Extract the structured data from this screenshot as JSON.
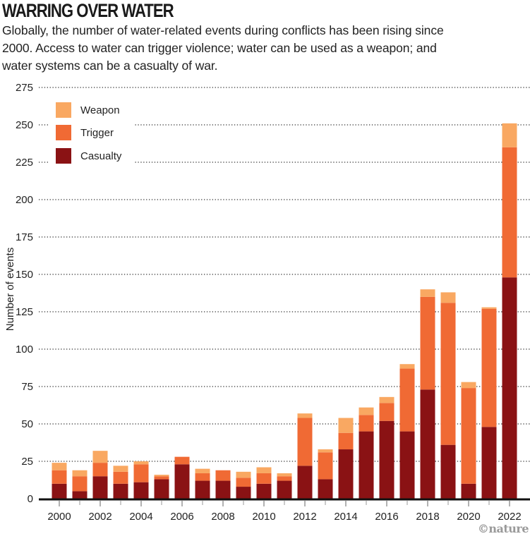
{
  "header": {
    "title": "WARRING OVER WATER",
    "subtitle": "Globally, the number of water-related events during conflicts has been rising since 2000. Access to water can trigger violence; water can be used as a weapon; and water systems can be a casualty of war."
  },
  "credit": "©nature",
  "colors": {
    "Weapon": "#F9A862",
    "Trigger": "#F06A34",
    "Casualty": "#8A1214",
    "axis": "#111111",
    "grid": "#333333"
  },
  "chart_data": {
    "type": "bar",
    "stacked": true,
    "title": "WARRING OVER WATER",
    "xlabel": "",
    "ylabel": "Number of events",
    "ylim": [
      0,
      275
    ],
    "yticks": [
      0,
      25,
      50,
      75,
      100,
      125,
      150,
      175,
      200,
      225,
      250,
      275
    ],
    "xtick_labels": [
      "2000",
      "2002",
      "2004",
      "2006",
      "2008",
      "2010",
      "2012",
      "2014",
      "2016",
      "2018",
      "2020",
      "2022"
    ],
    "grid": "horizontal dotted",
    "legend_position": "top-left",
    "legend": [
      "Weapon",
      "Trigger",
      "Casualty"
    ],
    "categories": [
      2000,
      2001,
      2002,
      2003,
      2004,
      2005,
      2006,
      2007,
      2008,
      2009,
      2010,
      2011,
      2012,
      2013,
      2014,
      2015,
      2016,
      2017,
      2018,
      2019,
      2020,
      2021,
      2022
    ],
    "series": [
      {
        "name": "Casualty",
        "values": [
          10,
          5,
          15,
          10,
          11,
          13,
          23,
          12,
          12,
          8,
          10,
          12,
          22,
          13,
          33,
          45,
          52,
          45,
          73,
          36,
          10,
          48,
          148
        ]
      },
      {
        "name": "Trigger",
        "values": [
          9,
          10,
          9,
          8,
          12,
          2,
          5,
          5,
          7,
          6,
          7,
          3,
          32,
          18,
          11,
          11,
          12,
          42,
          62,
          95,
          64,
          79,
          87
        ]
      },
      {
        "name": "Weapon",
        "values": [
          5,
          4,
          8,
          4,
          2,
          1,
          0,
          3,
          0,
          4,
          4,
          2,
          3,
          2,
          10,
          5,
          4,
          3,
          5,
          7,
          4,
          1,
          16
        ]
      }
    ]
  }
}
